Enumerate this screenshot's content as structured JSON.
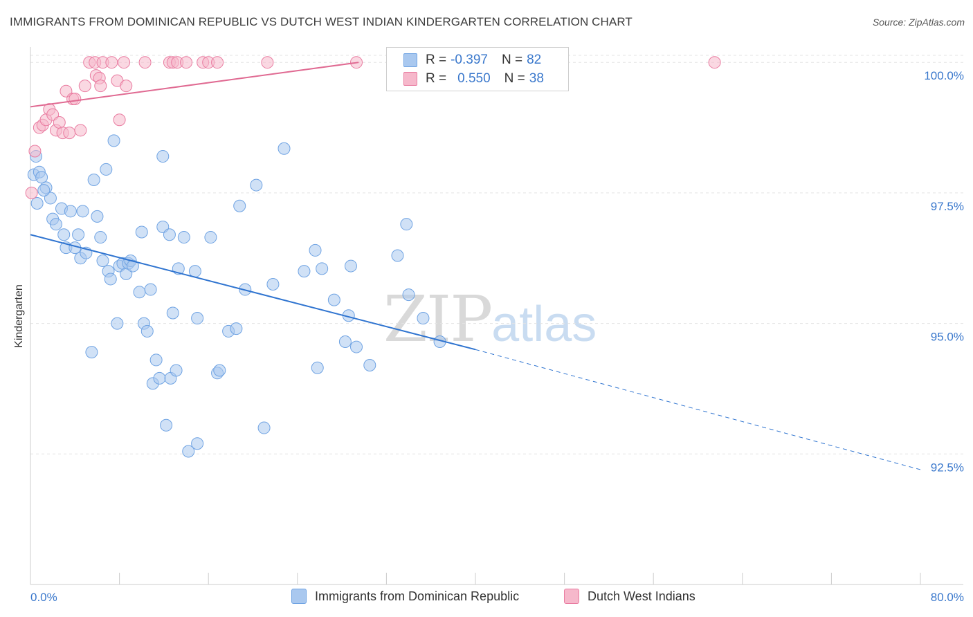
{
  "header": {
    "title": "IMMIGRANTS FROM DOMINICAN REPUBLIC VS DUTCH WEST INDIAN KINDERGARTEN CORRELATION CHART",
    "source": "Source: ZipAtlas.com"
  },
  "watermark": {
    "zip": "ZIP",
    "atlas": "atlas"
  },
  "legend_top": {
    "rows": [
      {
        "r_label": "R =",
        "r_value": "-0.397",
        "n_label": "N =",
        "n_value": "82",
        "color": "#a9c8ef"
      },
      {
        "r_label": "R =",
        "r_value": "0.550",
        "n_label": "N =",
        "n_value": "38",
        "color": "#f6b8cb"
      }
    ]
  },
  "legend_bottom": {
    "items": [
      {
        "label": "Immigrants from Dominican Republic",
        "color": "#a9c8ef"
      },
      {
        "label": "Dutch West Indians",
        "color": "#f6b8cb"
      }
    ]
  },
  "chart_data": {
    "type": "scatter",
    "title": "IMMIGRANTS FROM DOMINICAN REPUBLIC VS DUTCH WEST INDIAN KINDERGARTEN CORRELATION CHART",
    "xlabel": "",
    "ylabel": "Kindergarten",
    "xlim": [
      0,
      80
    ],
    "ylim": [
      90.0,
      100.4
    ],
    "x_tick_labels": [
      "0.0%",
      "80.0%"
    ],
    "y_ticks": [
      92.5,
      95.0,
      97.5,
      100.0
    ],
    "y_tick_labels": [
      "92.5%",
      "95.0%",
      "97.5%",
      "100.0%"
    ],
    "grid": true,
    "series": [
      {
        "name": "Immigrants from Dominican Republic",
        "color": "#6fa3e3",
        "fill": "#a9c8ef",
        "trend": {
          "x0": 0,
          "y0": 96.7,
          "x1": 40,
          "y1": 94.5,
          "dash_to_x": 80,
          "dash_to_y": 92.2
        },
        "points": [
          [
            0.3,
            97.85
          ],
          [
            0.5,
            98.2
          ],
          [
            0.8,
            97.9
          ],
          [
            1.0,
            97.8
          ],
          [
            1.4,
            97.6
          ],
          [
            1.8,
            97.4
          ],
          [
            2.0,
            97.0
          ],
          [
            2.3,
            96.9
          ],
          [
            2.8,
            97.2
          ],
          [
            3.0,
            96.7
          ],
          [
            3.2,
            96.45
          ],
          [
            3.6,
            97.15
          ],
          [
            4.0,
            96.45
          ],
          [
            4.3,
            96.7
          ],
          [
            4.5,
            96.25
          ],
          [
            4.7,
            97.15
          ],
          [
            5.0,
            96.35
          ],
          [
            5.5,
            94.45
          ],
          [
            5.7,
            97.75
          ],
          [
            6.0,
            97.05
          ],
          [
            6.3,
            96.65
          ],
          [
            6.5,
            96.2
          ],
          [
            6.8,
            97.95
          ],
          [
            7.0,
            96.0
          ],
          [
            7.2,
            95.85
          ],
          [
            7.5,
            98.5
          ],
          [
            7.8,
            95.0
          ],
          [
            8.0,
            96.1
          ],
          [
            8.3,
            96.15
          ],
          [
            8.6,
            95.95
          ],
          [
            8.8,
            96.15
          ],
          [
            9.0,
            96.2
          ],
          [
            9.2,
            96.1
          ],
          [
            9.8,
            95.6
          ],
          [
            10.0,
            96.75
          ],
          [
            10.2,
            95.0
          ],
          [
            10.5,
            94.85
          ],
          [
            10.8,
            95.65
          ],
          [
            11.0,
            93.85
          ],
          [
            11.3,
            94.3
          ],
          [
            11.6,
            93.95
          ],
          [
            11.9,
            98.2
          ],
          [
            11.9,
            96.85
          ],
          [
            12.2,
            93.05
          ],
          [
            12.5,
            96.7
          ],
          [
            12.6,
            93.95
          ],
          [
            12.8,
            95.2
          ],
          [
            13.1,
            94.1
          ],
          [
            13.3,
            96.05
          ],
          [
            13.8,
            96.65
          ],
          [
            14.2,
            92.55
          ],
          [
            14.8,
            96.0
          ],
          [
            15.0,
            95.1
          ],
          [
            15.0,
            92.7
          ],
          [
            16.2,
            96.65
          ],
          [
            16.8,
            94.05
          ],
          [
            17.0,
            94.1
          ],
          [
            17.8,
            94.85
          ],
          [
            18.5,
            94.9
          ],
          [
            18.8,
            97.25
          ],
          [
            19.3,
            95.65
          ],
          [
            20.3,
            97.65
          ],
          [
            21.0,
            93.0
          ],
          [
            21.8,
            95.75
          ],
          [
            22.8,
            98.35
          ],
          [
            24.6,
            96.0
          ],
          [
            25.6,
            96.4
          ],
          [
            25.8,
            94.15
          ],
          [
            26.2,
            96.05
          ],
          [
            27.3,
            95.45
          ],
          [
            28.3,
            94.65
          ],
          [
            28.6,
            95.15
          ],
          [
            28.8,
            96.1
          ],
          [
            29.3,
            94.55
          ],
          [
            30.5,
            94.2
          ],
          [
            33.0,
            96.3
          ],
          [
            33.8,
            96.9
          ],
          [
            34.0,
            95.55
          ],
          [
            35.3,
            95.1
          ],
          [
            36.8,
            94.65
          ],
          [
            0.6,
            97.3
          ],
          [
            1.2,
            97.55
          ]
        ]
      },
      {
        "name": "Dutch West Indians",
        "color": "#e97ba0",
        "fill": "#f6b8cb",
        "trend": {
          "x0": 0,
          "y0": 99.15,
          "x1": 29.5,
          "y1": 100.0
        },
        "points": [
          [
            0.1,
            97.5
          ],
          [
            0.4,
            98.3
          ],
          [
            0.8,
            98.75
          ],
          [
            1.1,
            98.8
          ],
          [
            1.4,
            98.9
          ],
          [
            1.7,
            99.1
          ],
          [
            2.0,
            99.0
          ],
          [
            2.3,
            98.7
          ],
          [
            2.6,
            98.85
          ],
          [
            2.9,
            98.65
          ],
          [
            3.2,
            99.45
          ],
          [
            3.5,
            98.65
          ],
          [
            3.8,
            99.3
          ],
          [
            4.0,
            99.3
          ],
          [
            4.5,
            98.7
          ],
          [
            4.9,
            99.55
          ],
          [
            5.3,
            100.0
          ],
          [
            5.8,
            100.0
          ],
          [
            5.9,
            99.75
          ],
          [
            6.2,
            99.7
          ],
          [
            6.3,
            99.55
          ],
          [
            6.5,
            100.0
          ],
          [
            7.3,
            100.0
          ],
          [
            7.8,
            99.65
          ],
          [
            8.0,
            98.9
          ],
          [
            8.4,
            100.0
          ],
          [
            8.6,
            99.55
          ],
          [
            10.3,
            100.0
          ],
          [
            12.5,
            100.0
          ],
          [
            12.8,
            100.0
          ],
          [
            13.2,
            100.0
          ],
          [
            14.0,
            100.0
          ],
          [
            15.5,
            100.0
          ],
          [
            16.0,
            100.0
          ],
          [
            16.8,
            100.0
          ],
          [
            21.3,
            100.0
          ],
          [
            29.3,
            100.0
          ],
          [
            61.5,
            100.0
          ]
        ]
      }
    ]
  }
}
